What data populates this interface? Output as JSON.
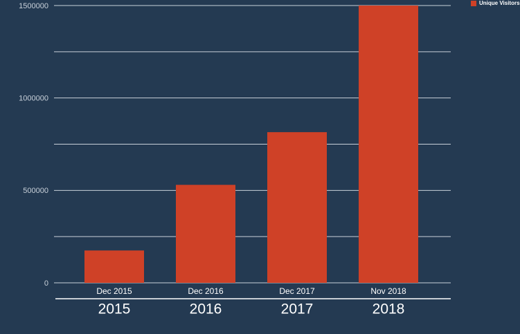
{
  "chart_data": {
    "type": "bar",
    "categories": [
      "Dec 2015",
      "Dec 2016",
      "Dec 2017",
      "Nov 2018"
    ],
    "groups": [
      "2015",
      "2016",
      "2017",
      "2018"
    ],
    "series": [
      {
        "name": "Unique Visitors",
        "color": "#cf4127",
        "values": [
          175000,
          530000,
          815000,
          1500000
        ]
      }
    ],
    "ylim": [
      0,
      1500000
    ],
    "yticks": [
      0,
      500000,
      1000000,
      1500000
    ],
    "yticks_minor": [
      250000,
      750000,
      1250000
    ],
    "grid": true,
    "legend": "top-right"
  }
}
